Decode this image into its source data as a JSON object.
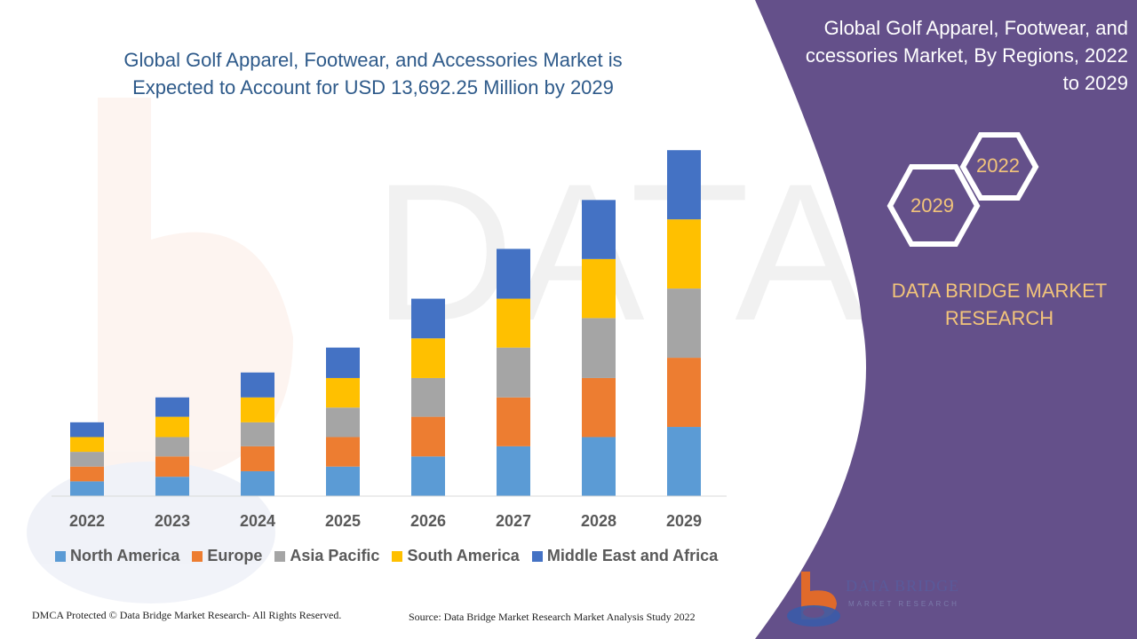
{
  "chart_data": {
    "type": "bar",
    "stacked": true,
    "title": "Global Golf Apparel, Footwear, and Accessories Market is Expected to Account for USD 13,692.25 Million by 2029",
    "title_lines": [
      "Global Golf Apparel, Footwear, and Accessories Market is",
      "Expected to Account for USD 13,692.25 Million by 2029"
    ],
    "categories": [
      "2022",
      "2023",
      "2024",
      "2025",
      "2026",
      "2027",
      "2028",
      "2029"
    ],
    "series": [
      {
        "name": "North America",
        "color": "#5b9bd5",
        "values": [
          16,
          21,
          27,
          32,
          43,
          54,
          64,
          75
        ]
      },
      {
        "name": "Europe",
        "color": "#ed7d31",
        "values": [
          16,
          22,
          27,
          32,
          43,
          53,
          64,
          75
        ]
      },
      {
        "name": "Asia Pacific",
        "color": "#a5a5a5",
        "values": [
          16,
          21,
          26,
          32,
          42,
          54,
          65,
          75
        ]
      },
      {
        "name": "South America",
        "color": "#ffc000",
        "values": [
          16,
          22,
          27,
          32,
          43,
          53,
          64,
          75
        ]
      },
      {
        "name": "Middle East and Africa",
        "color": "#4472c4",
        "values": [
          16,
          21,
          27,
          33,
          43,
          54,
          64,
          75
        ]
      }
    ],
    "ylim": [
      0,
      380
    ],
    "grid": false,
    "y_axis_visible": false,
    "legend_position": "bottom"
  },
  "side_panel": {
    "title_lines": [
      "Global Golf Apparel, Footwear, and",
      "ccessories Market, By Regions, 2022",
      "to 2029"
    ],
    "hex_year_a": "2022",
    "hex_year_b": "2029",
    "brand_lines": [
      "DATA BRIDGE MARKET",
      "RESEARCH"
    ],
    "background_color": "#64508a",
    "accent_color": "#f2c47a"
  },
  "footer": {
    "copyright": "DMCA Protected © Data Bridge Market Research- All Rights Reserved.",
    "source": "Source: Data Bridge Market Research Market Analysis Study 2022"
  },
  "logo": {
    "name": "DATA BRIDGE",
    "tagline": "MARKET RESEARCH"
  },
  "watermark_text": "DATA BRIDGE"
}
